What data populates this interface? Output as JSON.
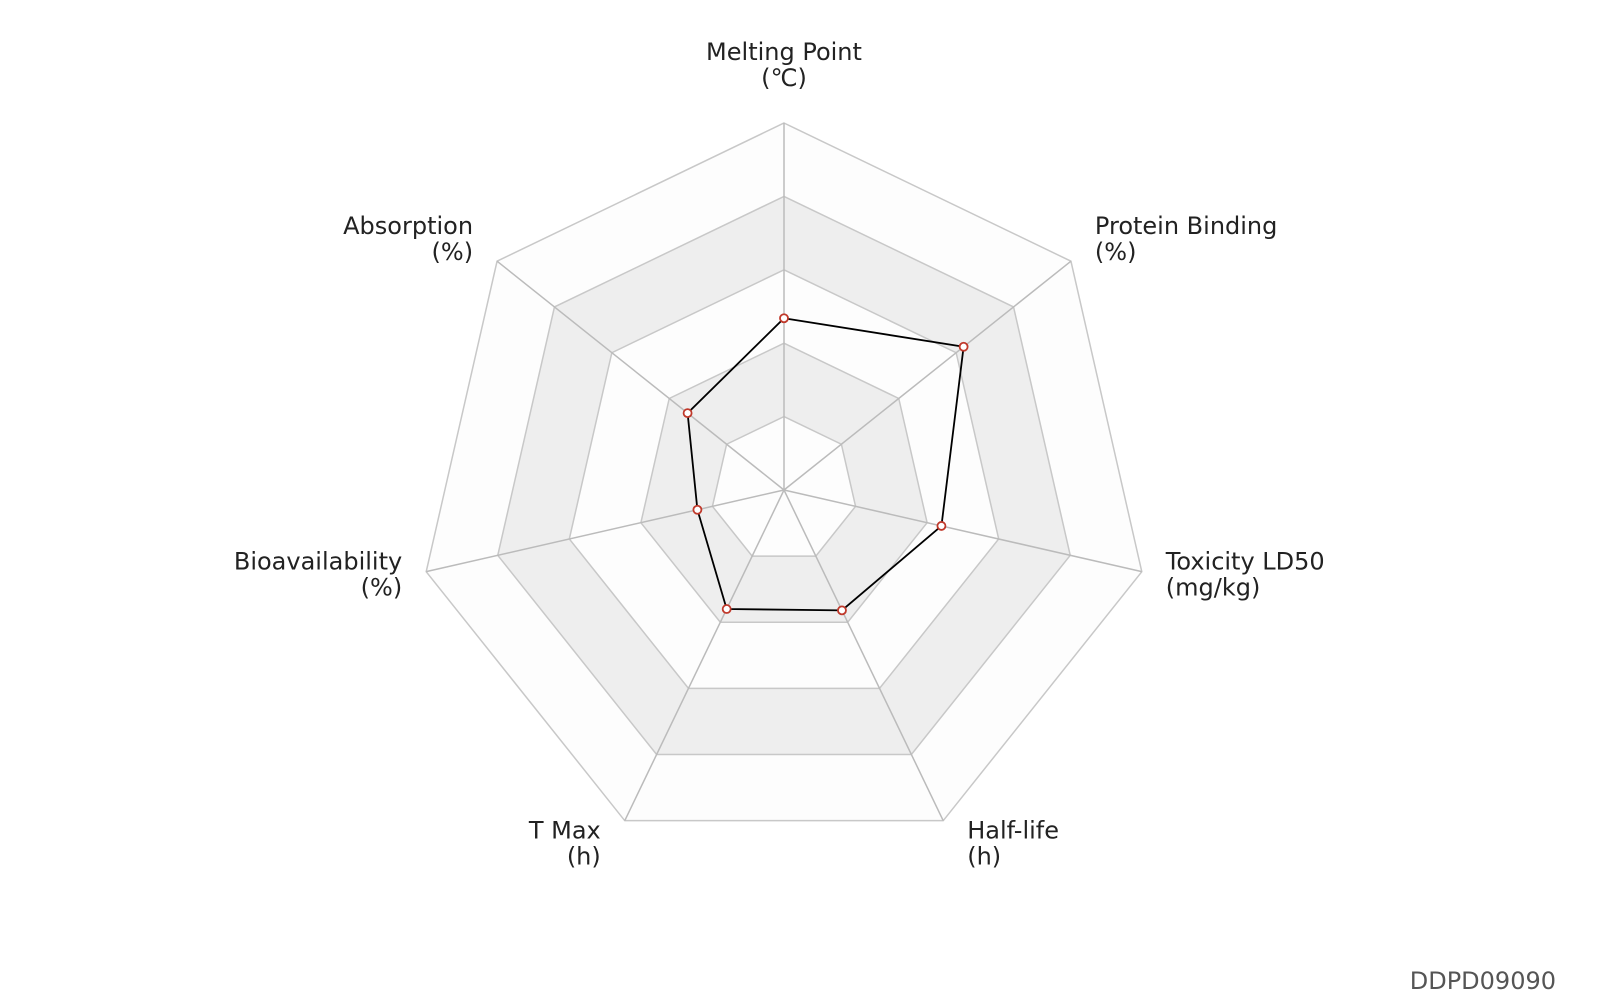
{
  "chart_data": {
    "type": "radar",
    "categories": [
      [
        "Melting Point",
        "(℃)"
      ],
      [
        "Protein Binding",
        "(%)"
      ],
      [
        "Toxicity LD50",
        "(mg/kg)"
      ],
      [
        "Half-life",
        "(h)"
      ],
      [
        "T Max",
        "(h)"
      ],
      [
        "Bioavailability",
        "(%)"
      ],
      [
        "Absorption",
        "(%)"
      ]
    ],
    "series": [
      {
        "color": "#000000",
        "marker_color": "#c0392b",
        "values": [
          2.34,
          3.13,
          2.2,
          1.82,
          1.8,
          1.21,
          1.68
        ]
      }
    ],
    "rlim": [
      0,
      5
    ],
    "rticks": [
      1,
      2,
      3,
      4,
      5
    ],
    "grid": true,
    "watermark": "DDPD09090"
  }
}
